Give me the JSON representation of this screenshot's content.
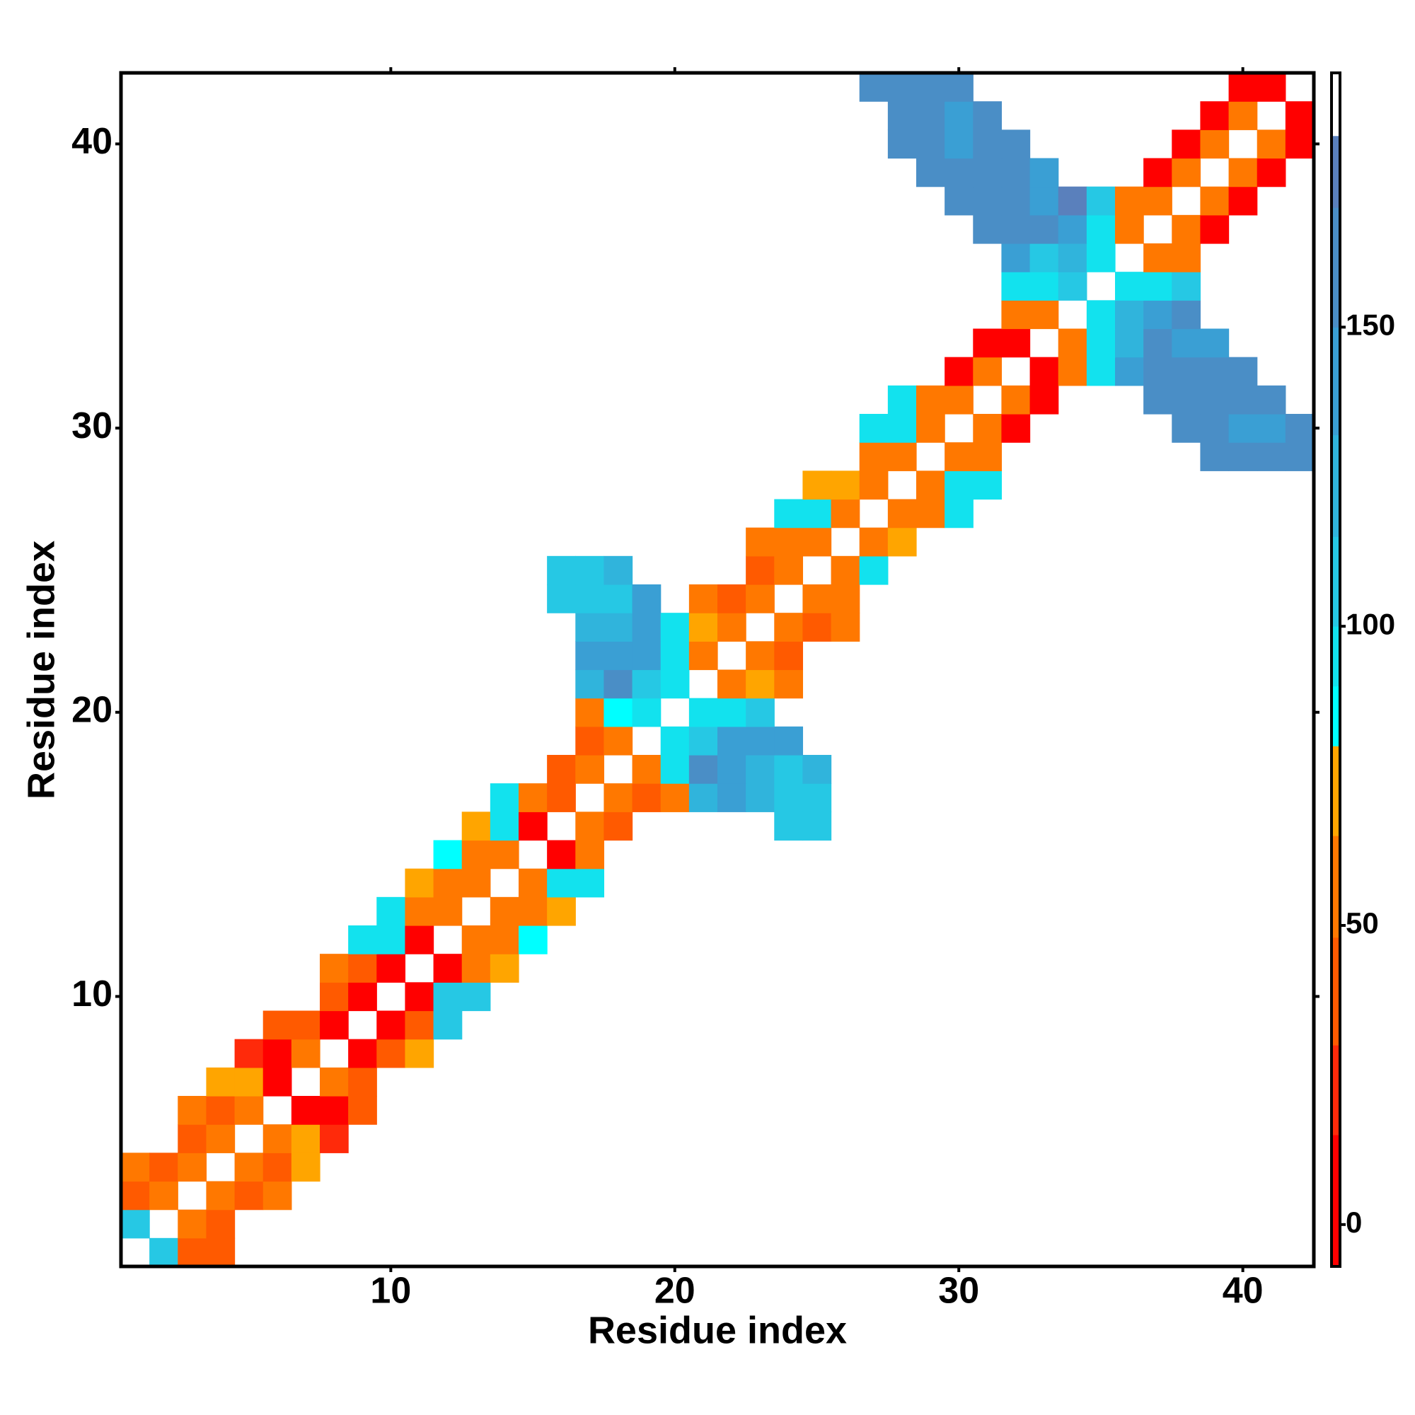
{
  "chart_data": {
    "type": "heatmap",
    "xlabel": "Residue index",
    "ylabel": "Residue index",
    "xlim": [
      0.5,
      42.5
    ],
    "ylim": [
      0.5,
      42.5
    ],
    "xticks": [
      10,
      20,
      30,
      40
    ],
    "yticks": [
      10,
      20,
      30,
      40
    ],
    "clim": [
      -7,
      192.5
    ],
    "cticks": [
      0,
      50,
      100,
      150
    ],
    "colorscale": [
      {
        "value": -7,
        "color": "#ff0000"
      },
      {
        "value": 15,
        "color": "#ff2a0a"
      },
      {
        "value": 30,
        "color": "#ff5a00"
      },
      {
        "value": 48,
        "color": "#ff7800"
      },
      {
        "value": 65,
        "color": "#ffa500"
      },
      {
        "value": 80,
        "color": "#00ffff"
      },
      {
        "value": 90,
        "color": "#12e2ee"
      },
      {
        "value": 100,
        "color": "#26c8e4"
      },
      {
        "value": 115,
        "color": "#30b4dc"
      },
      {
        "value": 132,
        "color": "#3a9fd4"
      },
      {
        "value": 150,
        "color": "#4a8ec6"
      },
      {
        "value": 170,
        "color": "#5a80bc"
      },
      {
        "value": 182,
        "color": "#ffffff"
      }
    ],
    "x": [
      2,
      3,
      4,
      1,
      3,
      4,
      1,
      2,
      4,
      5,
      6,
      1,
      2,
      3,
      5,
      6,
      7,
      3,
      4,
      6,
      7,
      8,
      3,
      4,
      5,
      7,
      8,
      9,
      4,
      5,
      6,
      8,
      9,
      5,
      6,
      7,
      9,
      10,
      11,
      6,
      7,
      8,
      10,
      11,
      12,
      8,
      9,
      11,
      12,
      13,
      8,
      9,
      10,
      12,
      13,
      14,
      9,
      10,
      11,
      13,
      14,
      15,
      10,
      11,
      12,
      14,
      15,
      16,
      11,
      12,
      13,
      15,
      16,
      17,
      12,
      13,
      14,
      16,
      17,
      13,
      14,
      15,
      17,
      18,
      24,
      25,
      14,
      15,
      16,
      18,
      19,
      20,
      21,
      22,
      23,
      24,
      25,
      16,
      17,
      19,
      20,
      21,
      22,
      23,
      24,
      25,
      17,
      18,
      20,
      21,
      22,
      23,
      24,
      17,
      18,
      19,
      21,
      22,
      23,
      17,
      18,
      19,
      20,
      22,
      23,
      24,
      17,
      18,
      19,
      20,
      21,
      23,
      24,
      17,
      18,
      19,
      20,
      21,
      22,
      24,
      25,
      26,
      16,
      17,
      18,
      19,
      21,
      22,
      23,
      25,
      26,
      16,
      17,
      18,
      23,
      24,
      26,
      27,
      23,
      24,
      25,
      27,
      28,
      24,
      25,
      26,
      28,
      29,
      30,
      25,
      26,
      27,
      29,
      30,
      31,
      27,
      28,
      30,
      31,
      39,
      40,
      41,
      42,
      27,
      28,
      29,
      31,
      32,
      38,
      39,
      40,
      41,
      42,
      28,
      29,
      30,
      32,
      33,
      37,
      38,
      39,
      40,
      41,
      30,
      31,
      33,
      34,
      35,
      36,
      37,
      38,
      39,
      40,
      31,
      32,
      34,
      35,
      36,
      37,
      38,
      39,
      32,
      33,
      35,
      36,
      37,
      38,
      32,
      33,
      34,
      36,
      37,
      38,
      32,
      33,
      34,
      35,
      37,
      38,
      31,
      32,
      33,
      34,
      35,
      36,
      38,
      39,
      30,
      31,
      32,
      33,
      34,
      35,
      36,
      37,
      39,
      40,
      29,
      30,
      31,
      32,
      33,
      37,
      38,
      40,
      41,
      28,
      29,
      30,
      31,
      32,
      38,
      39,
      41,
      42,
      28,
      29,
      30,
      31,
      39,
      40,
      42,
      27,
      28,
      29,
      30,
      40,
      41
    ],
    "y": [
      1,
      1,
      1,
      2,
      2,
      2,
      3,
      3,
      3,
      3,
      3,
      4,
      4,
      4,
      4,
      4,
      4,
      5,
      5,
      5,
      5,
      5,
      6,
      6,
      6,
      6,
      6,
      6,
      7,
      7,
      7,
      7,
      7,
      8,
      8,
      8,
      8,
      8,
      8,
      9,
      9,
      9,
      9,
      9,
      9,
      10,
      10,
      10,
      10,
      10,
      11,
      11,
      11,
      11,
      11,
      11,
      12,
      12,
      12,
      12,
      12,
      12,
      13,
      13,
      13,
      13,
      13,
      13,
      14,
      14,
      14,
      14,
      14,
      14,
      15,
      15,
      15,
      15,
      15,
      16,
      16,
      16,
      16,
      16,
      16,
      16,
      17,
      17,
      17,
      17,
      17,
      17,
      17,
      17,
      17,
      17,
      17,
      18,
      18,
      18,
      18,
      18,
      18,
      18,
      18,
      18,
      19,
      19,
      19,
      19,
      19,
      19,
      19,
      20,
      20,
      20,
      20,
      20,
      20,
      21,
      21,
      21,
      21,
      21,
      21,
      21,
      22,
      22,
      22,
      22,
      22,
      22,
      22,
      23,
      23,
      23,
      23,
      23,
      23,
      23,
      23,
      23,
      24,
      24,
      24,
      24,
      24,
      24,
      24,
      24,
      24,
      25,
      25,
      25,
      25,
      25,
      25,
      25,
      26,
      26,
      26,
      26,
      26,
      27,
      27,
      27,
      27,
      27,
      27,
      28,
      28,
      28,
      28,
      28,
      28,
      29,
      29,
      29,
      29,
      29,
      29,
      29,
      29,
      30,
      30,
      30,
      30,
      30,
      30,
      30,
      30,
      30,
      30,
      31,
      31,
      31,
      31,
      31,
      31,
      31,
      31,
      31,
      31,
      32,
      32,
      32,
      32,
      32,
      32,
      32,
      32,
      32,
      32,
      33,
      33,
      33,
      33,
      33,
      33,
      33,
      33,
      34,
      34,
      34,
      34,
      34,
      34,
      35,
      35,
      35,
      35,
      35,
      35,
      36,
      36,
      36,
      36,
      36,
      36,
      37,
      37,
      37,
      37,
      37,
      37,
      37,
      37,
      38,
      38,
      38,
      38,
      38,
      38,
      38,
      38,
      38,
      38,
      39,
      39,
      39,
      39,
      39,
      39,
      39,
      39,
      39,
      40,
      40,
      40,
      40,
      40,
      40,
      40,
      40,
      40,
      41,
      41,
      41,
      41,
      41,
      41,
      41,
      42,
      42,
      42,
      42,
      42,
      42
    ],
    "values": [
      105,
      40,
      40,
      105,
      55,
      40,
      40,
      55,
      55,
      40,
      55,
      55,
      40,
      55,
      55,
      40,
      70,
      40,
      55,
      55,
      70,
      20,
      55,
      40,
      55,
      5,
      5,
      40,
      70,
      70,
      5,
      55,
      40,
      20,
      5,
      55,
      5,
      40,
      70,
      40,
      40,
      5,
      5,
      40,
      105,
      40,
      5,
      5,
      105,
      105,
      55,
      40,
      5,
      5,
      55,
      70,
      95,
      95,
      5,
      55,
      55,
      85,
      95,
      55,
      55,
      55,
      55,
      70,
      70,
      55,
      55,
      55,
      95,
      95,
      85,
      55,
      55,
      5,
      55,
      70,
      95,
      5,
      55,
      40,
      105,
      105,
      95,
      55,
      40,
      55,
      40,
      55,
      125,
      140,
      125,
      105,
      105,
      40,
      55,
      55,
      95,
      160,
      140,
      125,
      105,
      125,
      40,
      55,
      95,
      105,
      140,
      140,
      140,
      55,
      85,
      95,
      95,
      95,
      105,
      125,
      160,
      105,
      95,
      55,
      70,
      55,
      140,
      140,
      140,
      95,
      55,
      55,
      40,
      125,
      125,
      140,
      95,
      70,
      55,
      55,
      40,
      55,
      105,
      105,
      105,
      140,
      55,
      40,
      55,
      55,
      55,
      105,
      105,
      125,
      40,
      55,
      55,
      95,
      55,
      55,
      55,
      55,
      70,
      95,
      95,
      55,
      55,
      55,
      95,
      70,
      70,
      55,
      55,
      95,
      95,
      55,
      55,
      55,
      55,
      160,
      160,
      160,
      160,
      95,
      95,
      55,
      55,
      5,
      160,
      160,
      140,
      140,
      160,
      95,
      55,
      55,
      55,
      5,
      160,
      160,
      160,
      160,
      160,
      5,
      55,
      5,
      55,
      95,
      140,
      160,
      160,
      160,
      160,
      5,
      5,
      55,
      95,
      125,
      160,
      140,
      140,
      55,
      55,
      95,
      125,
      140,
      160,
      95,
      95,
      105,
      95,
      95,
      105,
      140,
      105,
      125,
      95,
      55,
      55,
      160,
      160,
      160,
      140,
      95,
      55,
      55,
      5,
      160,
      160,
      160,
      140,
      175,
      105,
      55,
      55,
      55,
      5,
      160,
      160,
      160,
      160,
      140,
      5,
      55,
      55,
      5,
      160,
      160,
      140,
      160,
      160,
      5,
      55,
      55,
      5,
      160,
      160,
      140,
      160,
      5,
      55,
      5,
      160,
      160,
      160,
      160,
      5,
      5
    ]
  }
}
